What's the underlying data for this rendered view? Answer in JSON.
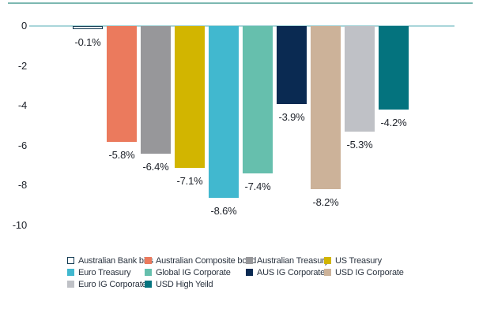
{
  "chart_data": {
    "type": "bar",
    "title": "",
    "xlabel": "",
    "ylabel": "",
    "categories": [
      "Australian Bank bills",
      "Australian Composite bond",
      "Australian Treasury",
      "US Treasury",
      "Euro Treasury",
      "Global IG Corporate",
      "AUS IG Corporate",
      "USD IG Corporate",
      "Euro IG Corporate",
      "USD High Yeild"
    ],
    "values": [
      -0.1,
      -5.8,
      -6.4,
      -7.1,
      -8.6,
      -7.4,
      -3.9,
      -8.2,
      -5.3,
      -4.2
    ],
    "data_labels": [
      "-0.1%",
      "-5.8%",
      "-6.4%",
      "-7.1%",
      "-8.6%",
      "-7.4%",
      "-3.9%",
      "-8.2%",
      "-5.3%",
      "-4.2%"
    ],
    "bar_colors": [
      "#ffffff",
      "#eb7a5d",
      "#97979a",
      "#d2b500",
      "#41b8cf",
      "#66bfad",
      "#0a2a52",
      "#ccb299",
      "#bfc1c6",
      "#04737e"
    ],
    "bar_border_colors": [
      "#123a52",
      "",
      "",
      "",
      "",
      "",
      "",
      "",
      "",
      ""
    ],
    "y_tick_labels": [
      "0",
      "-2",
      "-4",
      "-6",
      "-8",
      "-10"
    ],
    "y_tick_values": [
      0,
      -2,
      -4,
      -6,
      -8,
      -10
    ],
    "ylim": [
      0,
      -10
    ],
    "grid": false,
    "legend_position": "bottom"
  },
  "style_colors": {
    "top_rule": "#7db8b1",
    "zero_axis": "#a9d6da",
    "tick_text": "#20242c",
    "data_label_text": "#20242c",
    "legend_text": "#2b3440"
  }
}
